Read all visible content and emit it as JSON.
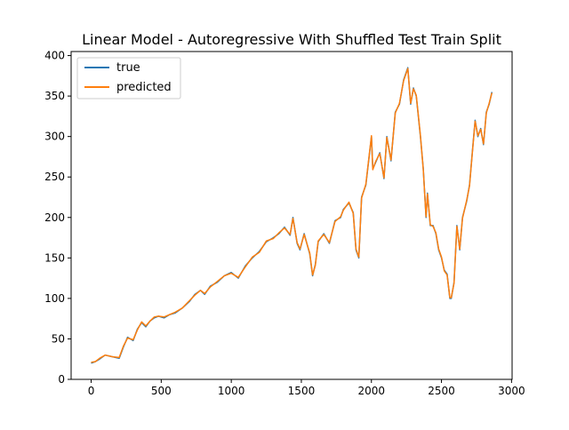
{
  "chart_data": {
    "type": "line",
    "title": "Linear Model - Autoregressive With Shuffled Test Train Split",
    "xlabel": "",
    "ylabel": "",
    "xlim": [
      -143,
      3004
    ],
    "ylim": [
      0,
      405
    ],
    "x_ticks": [
      0,
      500,
      1000,
      1500,
      2000,
      2500,
      3000
    ],
    "y_ticks": [
      0,
      50,
      100,
      150,
      200,
      250,
      300,
      350,
      400
    ],
    "grid": false,
    "legend": "top-left",
    "series": [
      {
        "name": "true",
        "color": "#1f77b4",
        "x": [
          0,
          30,
          60,
          100,
          150,
          200,
          230,
          260,
          300,
          330,
          360,
          390,
          420,
          450,
          480,
          520,
          560,
          600,
          650,
          700,
          740,
          780,
          810,
          850,
          900,
          950,
          1000,
          1050,
          1100,
          1150,
          1200,
          1250,
          1300,
          1340,
          1380,
          1420,
          1440,
          1470,
          1490,
          1520,
          1560,
          1580,
          1600,
          1620,
          1660,
          1700,
          1740,
          1780,
          1800,
          1840,
          1870,
          1890,
          1910,
          1930,
          1960,
          2000,
          2010,
          2030,
          2060,
          2090,
          2110,
          2140,
          2170,
          2200,
          2230,
          2260,
          2280,
          2300,
          2320,
          2350,
          2370,
          2390,
          2400,
          2420,
          2440,
          2460,
          2480,
          2500,
          2520,
          2540,
          2560,
          2570,
          2590,
          2610,
          2630,
          2650,
          2680,
          2700,
          2720,
          2740,
          2760,
          2780,
          2800,
          2820,
          2840,
          2860
        ],
        "y": [
          20,
          22,
          25,
          30,
          28,
          26,
          40,
          52,
          48,
          62,
          70,
          65,
          72,
          76,
          78,
          76,
          80,
          82,
          88,
          96,
          105,
          110,
          105,
          115,
          120,
          128,
          132,
          125,
          140,
          150,
          158,
          170,
          175,
          180,
          188,
          178,
          200,
          168,
          160,
          180,
          155,
          128,
          142,
          170,
          180,
          168,
          196,
          200,
          210,
          218,
          206,
          160,
          150,
          225,
          240,
          300,
          260,
          268,
          280,
          248,
          300,
          270,
          330,
          340,
          370,
          385,
          340,
          360,
          350,
          300,
          260,
          200,
          230,
          190,
          190,
          180,
          160,
          150,
          135,
          130,
          100,
          100,
          120,
          190,
          160,
          200,
          220,
          240,
          280,
          320,
          300,
          310,
          290,
          330,
          340,
          355
        ]
      },
      {
        "name": "predicted",
        "color": "#ff7f0e",
        "x": [
          0,
          30,
          60,
          100,
          150,
          200,
          230,
          260,
          300,
          330,
          360,
          390,
          420,
          450,
          480,
          520,
          560,
          600,
          650,
          700,
          740,
          780,
          810,
          850,
          900,
          950,
          1000,
          1050,
          1100,
          1150,
          1200,
          1250,
          1300,
          1340,
          1380,
          1420,
          1440,
          1470,
          1490,
          1520,
          1560,
          1580,
          1600,
          1620,
          1660,
          1700,
          1740,
          1780,
          1800,
          1840,
          1870,
          1890,
          1910,
          1930,
          1960,
          2000,
          2010,
          2030,
          2060,
          2090,
          2110,
          2140,
          2170,
          2200,
          2230,
          2260,
          2280,
          2300,
          2320,
          2350,
          2370,
          2390,
          2400,
          2420,
          2440,
          2460,
          2480,
          2500,
          2520,
          2540,
          2560,
          2570,
          2590,
          2610,
          2630,
          2650,
          2680,
          2700,
          2720,
          2740,
          2760,
          2780,
          2800,
          2820,
          2840,
          2860
        ],
        "y": [
          21,
          22,
          26,
          30,
          28,
          27,
          41,
          51,
          49,
          61,
          71,
          66,
          72,
          77,
          78,
          77,
          80,
          83,
          88,
          97,
          104,
          110,
          106,
          114,
          121,
          128,
          131,
          126,
          139,
          151,
          157,
          171,
          174,
          181,
          187,
          179,
          199,
          169,
          161,
          179,
          156,
          129,
          141,
          171,
          179,
          169,
          195,
          201,
          209,
          219,
          205,
          161,
          151,
          224,
          241,
          301,
          259,
          269,
          279,
          249,
          299,
          271,
          329,
          341,
          369,
          384,
          341,
          359,
          351,
          301,
          259,
          201,
          229,
          191,
          189,
          181,
          161,
          151,
          134,
          129,
          101,
          101,
          119,
          189,
          161,
          199,
          221,
          239,
          279,
          319,
          301,
          309,
          291,
          329,
          341,
          354
        ]
      }
    ]
  }
}
